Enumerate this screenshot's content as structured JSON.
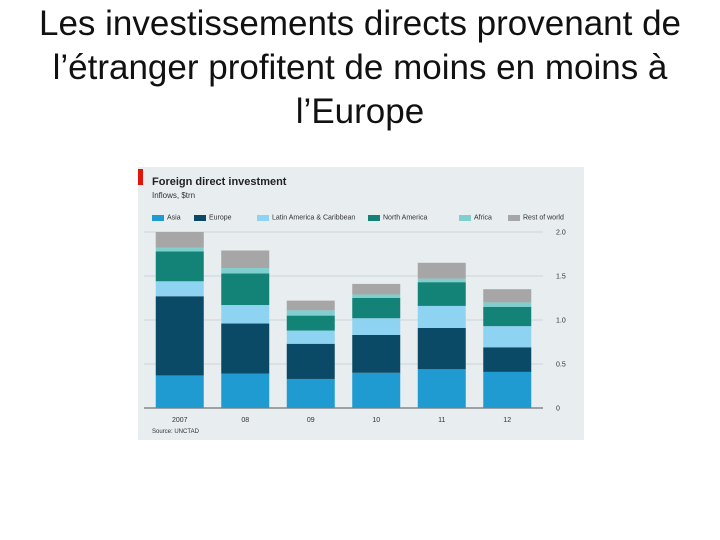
{
  "slide": {
    "title": "Les investissements directs provenant de l’étranger profitent de moins en moins à l’Europe"
  },
  "chart_data": {
    "type": "bar",
    "stacked": true,
    "title": "Foreign direct investment",
    "subtitle": "Inflows, $trn",
    "source": "Source: UNCTAD",
    "categories": [
      "2007",
      "08",
      "09",
      "10",
      "11",
      "12"
    ],
    "series": [
      {
        "name": "Asia",
        "color": "#1f9bd1",
        "values": [
          0.37,
          0.39,
          0.33,
          0.4,
          0.44,
          0.41
        ]
      },
      {
        "name": "Europe",
        "color": "#0b4a66",
        "values": [
          0.9,
          0.57,
          0.4,
          0.43,
          0.47,
          0.28
        ]
      },
      {
        "name": "Latin America & Caribbean",
        "color": "#8ed4f2",
        "values": [
          0.17,
          0.21,
          0.15,
          0.19,
          0.25,
          0.24
        ]
      },
      {
        "name": "North America",
        "color": "#138377",
        "values": [
          0.34,
          0.36,
          0.17,
          0.23,
          0.27,
          0.22
        ]
      },
      {
        "name": "Africa",
        "color": "#7fcfcf",
        "values": [
          0.04,
          0.06,
          0.06,
          0.04,
          0.04,
          0.05
        ]
      },
      {
        "name": "Rest of world",
        "color": "#a6a6a6",
        "values": [
          0.18,
          0.2,
          0.11,
          0.12,
          0.18,
          0.15
        ]
      }
    ],
    "y_ticks": [
      "0",
      "0.5",
      "1.0",
      "1.5",
      "2.0"
    ],
    "ylim": [
      0,
      2.0
    ],
    "grid": true,
    "legend": "top"
  }
}
